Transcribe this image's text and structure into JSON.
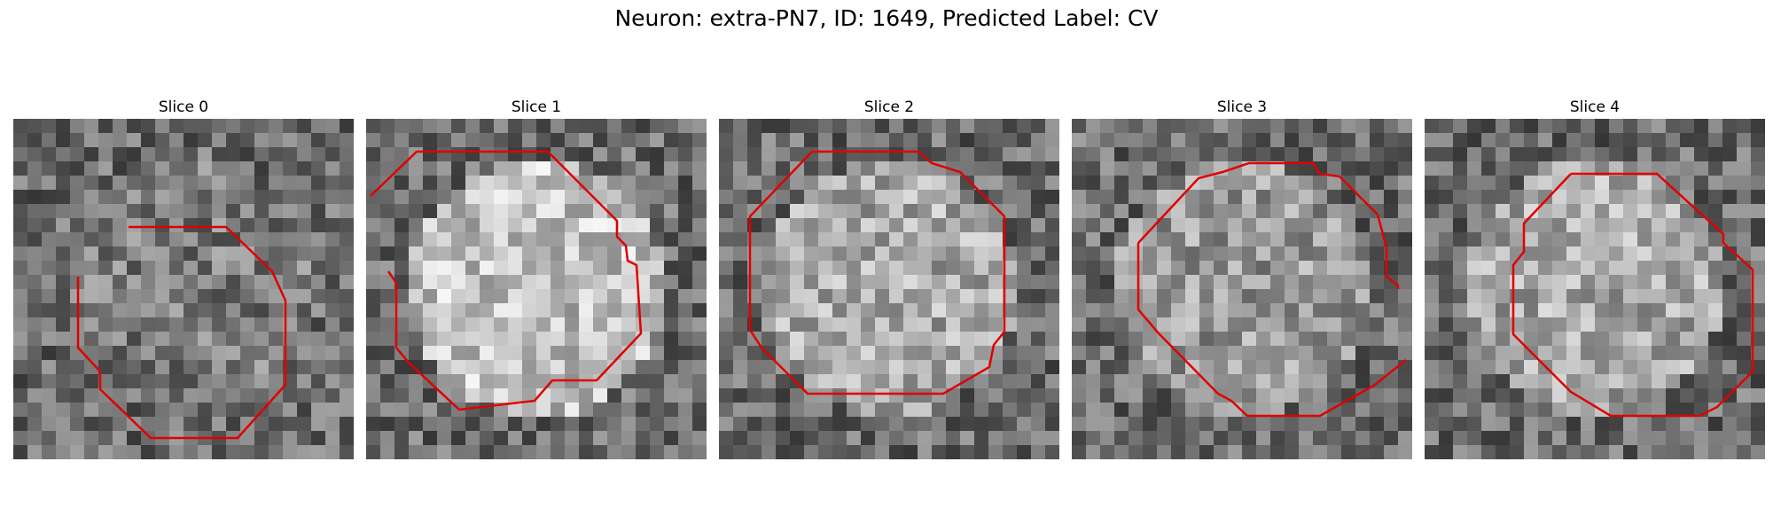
{
  "figure": {
    "title": "Neuron: extra-PN7, ID: 1649, Predicted Label: CV"
  },
  "panels": [
    {
      "title": "Slice 0",
      "image": "grayscale-em-patch",
      "contour_color": "#e00000",
      "center_brightness": 0.48,
      "seed": 11
    },
    {
      "title": "Slice 1",
      "image": "grayscale-em-patch",
      "contour_color": "#e00000",
      "center_brightness": 0.76,
      "seed": 23
    },
    {
      "title": "Slice 2",
      "image": "grayscale-em-patch",
      "contour_color": "#e00000",
      "center_brightness": 0.66,
      "seed": 37
    },
    {
      "title": "Slice 3",
      "image": "grayscale-em-patch",
      "contour_color": "#e00000",
      "center_brightness": 0.6,
      "seed": 51
    },
    {
      "title": "Slice 4",
      "image": "grayscale-em-patch",
      "contour_color": "#e00000",
      "center_brightness": 0.66,
      "seed": 67
    }
  ]
}
